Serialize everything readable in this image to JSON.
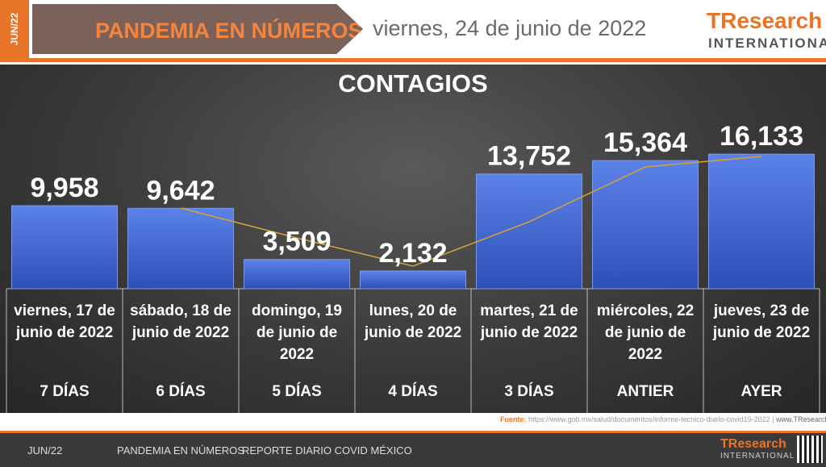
{
  "header": {
    "tab": "JUN/22",
    "banner": "PANDEMIA EN NÚMEROS",
    "date": "viernes,  24 de junio  de 2022",
    "logo": "TResearch",
    "logo_sub": "INTERNATIONAL"
  },
  "chart_data": {
    "type": "bar",
    "title": "CONTAGIOS",
    "categories": [
      "viernes, 17 de junio de 2022",
      "sábado, 18 de junio de 2022",
      "domingo, 19 de junio de 2022",
      "lunes, 20 de junio de 2022",
      "martes, 21 de junio de 2022",
      "miércoles, 22 de junio de 2022",
      "jueves, 23 de junio de 2022"
    ],
    "periods": [
      "7 DÍAS",
      "6 DÍAS",
      "5 DÍAS",
      "4 DÍAS",
      "3 DÍAS",
      "ANTIER",
      "AYER"
    ],
    "values": [
      9958,
      9642,
      3509,
      2132,
      13752,
      15364,
      16133
    ],
    "value_labels": [
      "9,958",
      "9,642",
      "3,509",
      "2,132",
      "13,752",
      "15,364",
      "16,133"
    ],
    "color": "#3f66d0",
    "line": {
      "color": "#d9a334",
      "values": [
        null,
        9670,
        6090,
        2710,
        8030,
        14600,
        15860
      ]
    },
    "ylim": [
      0,
      17500
    ]
  },
  "footer": {
    "source_label": "Fuente:",
    "source": "https://www.gob.mx/salud/documentos/informe-tecnico-diario-covid19-2022",
    "site": "www.TResearch.Mx",
    "items": [
      "JUN/22",
      "PANDEMIA EN NÚMEROS",
      "REPORTE DIARIO COVID MÉXICO"
    ],
    "logo": "TResearch",
    "logo_sub": "INTERNATIONAL"
  }
}
